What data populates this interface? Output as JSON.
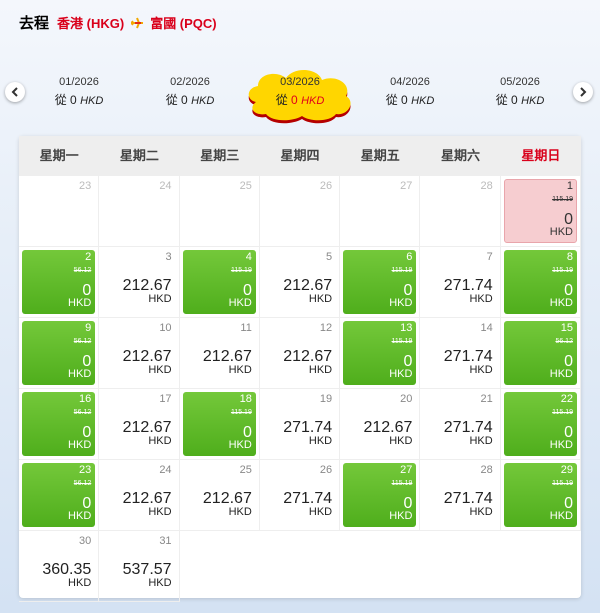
{
  "header": {
    "label": "去程",
    "origin": "香港 (HKG)",
    "destination": "富國 (PQC)"
  },
  "months": [
    {
      "month": "01/2026",
      "from": "從",
      "price": 0,
      "currency": "HKD",
      "selected": false
    },
    {
      "month": "02/2026",
      "from": "從",
      "price": 0,
      "currency": "HKD",
      "selected": false
    },
    {
      "month": "03/2026",
      "from": "從",
      "price": 0,
      "currency": "HKD",
      "selected": true
    },
    {
      "month": "04/2026",
      "from": "從",
      "price": 0,
      "currency": "HKD",
      "selected": false
    },
    {
      "month": "05/2026",
      "from": "從",
      "price": 0,
      "currency": "HKD",
      "selected": false
    }
  ],
  "calendar": {
    "weekdays": [
      "星期一",
      "星期二",
      "星期三",
      "星期四",
      "星期五",
      "星期六",
      "星期日"
    ],
    "weeks": [
      [
        {
          "day": 23,
          "state": "outside"
        },
        {
          "day": 24,
          "state": "outside"
        },
        {
          "day": 25,
          "state": "outside"
        },
        {
          "day": 26,
          "state": "outside"
        },
        {
          "day": 27,
          "state": "outside"
        },
        {
          "day": 28,
          "state": "outside"
        },
        {
          "day": 1,
          "state": "selected",
          "original_price": 115.19,
          "price": 0,
          "currency": "HKD"
        }
      ],
      [
        {
          "day": 2,
          "state": "deal",
          "original_price": 56.12,
          "price": 0,
          "currency": "HKD"
        },
        {
          "day": 3,
          "state": "normal",
          "price": 212.67,
          "currency": "HKD"
        },
        {
          "day": 4,
          "state": "deal",
          "original_price": 115.19,
          "price": 0,
          "currency": "HKD"
        },
        {
          "day": 5,
          "state": "normal",
          "price": 212.67,
          "currency": "HKD"
        },
        {
          "day": 6,
          "state": "deal",
          "original_price": 115.19,
          "price": 0,
          "currency": "HKD"
        },
        {
          "day": 7,
          "state": "normal",
          "price": 271.74,
          "currency": "HKD"
        },
        {
          "day": 8,
          "state": "deal",
          "original_price": 115.19,
          "price": 0,
          "currency": "HKD"
        }
      ],
      [
        {
          "day": 9,
          "state": "deal",
          "original_price": 56.12,
          "price": 0,
          "currency": "HKD"
        },
        {
          "day": 10,
          "state": "normal",
          "price": 212.67,
          "currency": "HKD"
        },
        {
          "day": 11,
          "state": "normal",
          "price": 212.67,
          "currency": "HKD"
        },
        {
          "day": 12,
          "state": "normal",
          "price": 212.67,
          "currency": "HKD"
        },
        {
          "day": 13,
          "state": "deal",
          "original_price": 115.19,
          "price": 0,
          "currency": "HKD"
        },
        {
          "day": 14,
          "state": "normal",
          "price": 271.74,
          "currency": "HKD"
        },
        {
          "day": 15,
          "state": "deal",
          "original_price": 56.12,
          "price": 0,
          "currency": "HKD"
        }
      ],
      [
        {
          "day": 16,
          "state": "deal",
          "original_price": 56.12,
          "price": 0,
          "currency": "HKD"
        },
        {
          "day": 17,
          "state": "normal",
          "price": 212.67,
          "currency": "HKD"
        },
        {
          "day": 18,
          "state": "deal",
          "original_price": 115.19,
          "price": 0,
          "currency": "HKD"
        },
        {
          "day": 19,
          "state": "normal",
          "price": 271.74,
          "currency": "HKD"
        },
        {
          "day": 20,
          "state": "normal",
          "price": 212.67,
          "currency": "HKD"
        },
        {
          "day": 21,
          "state": "normal",
          "price": 271.74,
          "currency": "HKD"
        },
        {
          "day": 22,
          "state": "deal",
          "original_price": 115.19,
          "price": 0,
          "currency": "HKD"
        }
      ],
      [
        {
          "day": 23,
          "state": "deal",
          "original_price": 56.12,
          "price": 0,
          "currency": "HKD"
        },
        {
          "day": 24,
          "state": "normal",
          "price": 212.67,
          "currency": "HKD"
        },
        {
          "day": 25,
          "state": "normal",
          "price": 212.67,
          "currency": "HKD"
        },
        {
          "day": 26,
          "state": "normal",
          "price": 271.74,
          "currency": "HKD"
        },
        {
          "day": 27,
          "state": "deal",
          "original_price": 115.19,
          "price": 0,
          "currency": "HKD"
        },
        {
          "day": 28,
          "state": "normal",
          "price": 271.74,
          "currency": "HKD"
        },
        {
          "day": 29,
          "state": "deal",
          "original_price": 115.19,
          "price": 0,
          "currency": "HKD"
        }
      ],
      [
        {
          "day": 30,
          "state": "normal",
          "price": 360.35,
          "currency": "HKD"
        },
        {
          "day": 31,
          "state": "normal",
          "price": 537.57,
          "currency": "HKD"
        }
      ]
    ]
  }
}
